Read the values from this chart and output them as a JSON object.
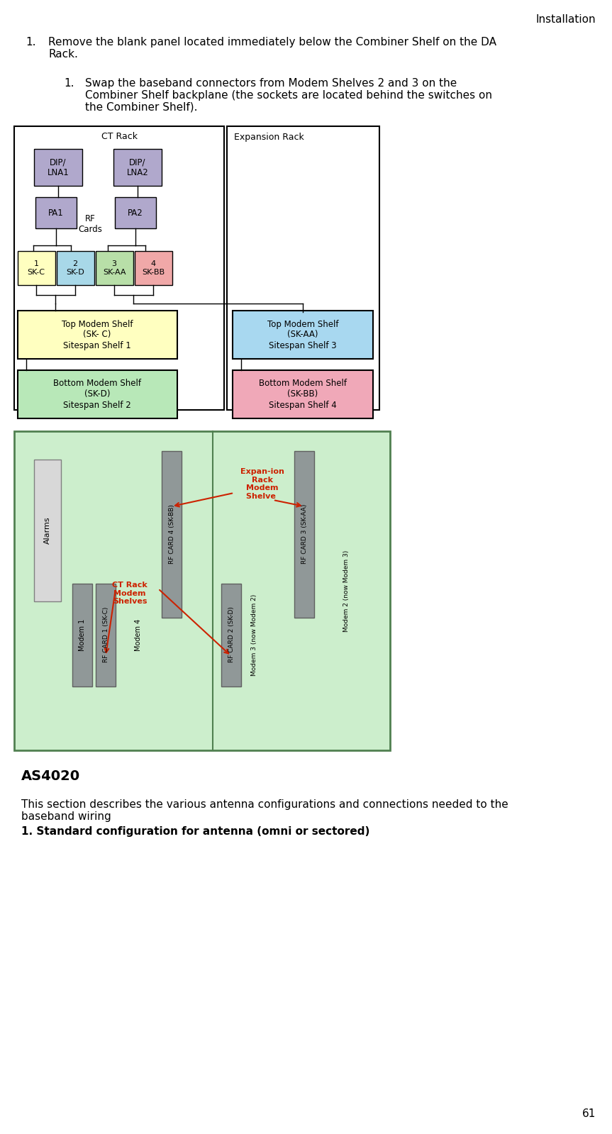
{
  "page_header": "Installation",
  "page_number": "61",
  "bg_color": "#ffffff",
  "dip_lna_fill": "#b0a8cc",
  "pa_fill": "#b0a8cc",
  "sk_c_fill": "#ffffc0",
  "sk_d_fill": "#a8d8e8",
  "sk_aa_fill": "#b8dfa8",
  "sk_bb_fill": "#f0a8a8",
  "top_shelf1_fill": "#ffffc0",
  "top_shelf1_label": "Top Modem Shelf\n(SK- C)\nSitespan Shelf 1",
  "bot_shelf1_fill": "#b8e8b8",
  "bot_shelf1_label": "Bottom Modem Shelf\n(SK-D)\nSitespan Shelf 2",
  "top_shelf3_fill": "#a8d8f0",
  "top_shelf3_label": "Top Modem Shelf\n(SK-AA)\nSitespan Shelf 3",
  "bot_shelf3_fill": "#f0a8b8",
  "bot_shelf3_label": "Bottom Modem Shelf\n(SK-BB)\nSitespan Shelf 4",
  "lower_bg": "#cceecc",
  "bar_fill": "#909898",
  "alarms_fill": "#d8d8d8",
  "red_color": "#cc2200",
  "as4020_title": "AS4020",
  "as4020_body1": "This section describes the various antenna configurations and connections needed to the",
  "as4020_body2": "baseband wiring",
  "as4020_sub": "1. Standard configuration for antenna (omni or sectored)",
  "ct_rack_label": "CT Rack",
  "expansion_rack_label": "Expansion Rack",
  "rf_cards_label": "RF\nCards",
  "expansion_modem_label": "Expan­ion\nRack\nModem\nShelve ",
  "ct_modem_label": "CT Rack\nModem\nShelves"
}
